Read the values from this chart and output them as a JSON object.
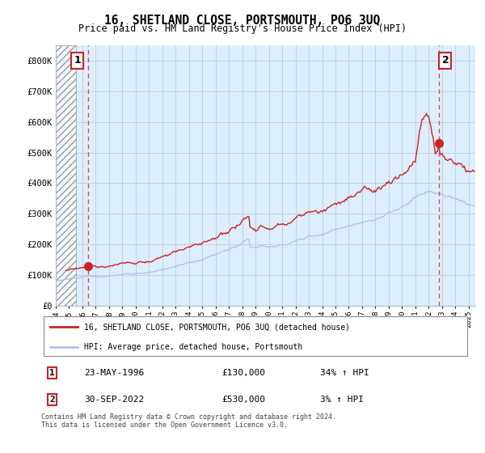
{
  "title": "16, SHETLAND CLOSE, PORTSMOUTH, PO6 3UQ",
  "subtitle": "Price paid vs. HM Land Registry's House Price Index (HPI)",
  "hpi_color": "#a8c8e8",
  "price_color": "#cc2222",
  "marker_color": "#cc2222",
  "dashed_line_color": "#ee4444",
  "xlim_start": 1994.0,
  "xlim_end": 2025.5,
  "ylim": [
    0,
    850000
  ],
  "yticks": [
    0,
    100000,
    200000,
    300000,
    400000,
    500000,
    600000,
    700000,
    800000
  ],
  "ytick_labels": [
    "£0",
    "£100K",
    "£200K",
    "£300K",
    "£400K",
    "£500K",
    "£600K",
    "£700K",
    "£800K"
  ],
  "bg_color": "#ddeeff",
  "hatch_end_year": 1995.5,
  "sale1_year": 1996.42,
  "sale1_price": 130000,
  "sale2_year": 2022.75,
  "sale2_price": 530000,
  "legend_line1": "16, SHETLAND CLOSE, PORTSMOUTH, PO6 3UQ (detached house)",
  "legend_line2": "HPI: Average price, detached house, Portsmouth",
  "footnote": "Contains HM Land Registry data © Crown copyright and database right 2024.\nThis data is licensed under the Open Government Licence v3.0.",
  "grid_color": "#bbccdd"
}
